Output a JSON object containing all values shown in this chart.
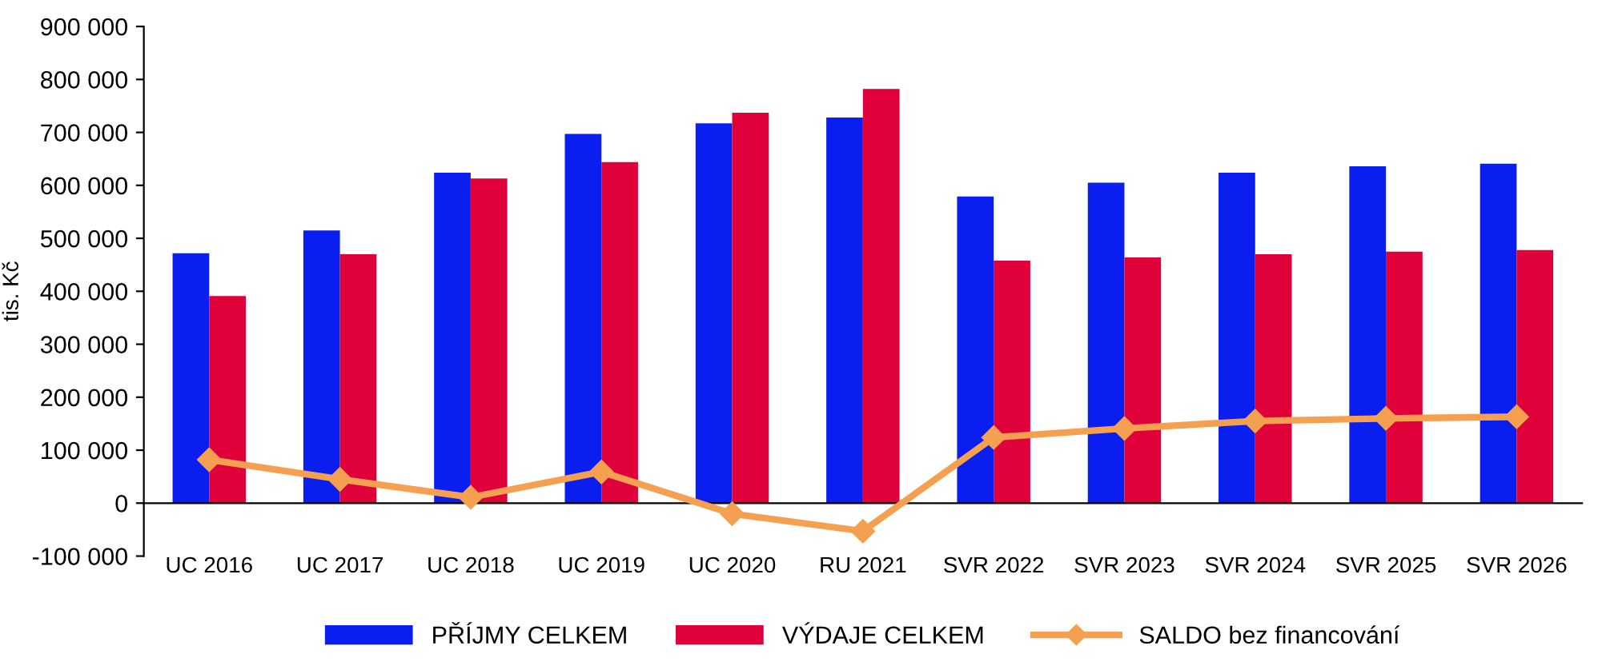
{
  "chart_data": {
    "type": "bar",
    "ylabel": "tis. Kč",
    "categories": [
      "UC 2016",
      "UC 2017",
      "UC 2018",
      "UC 2019",
      "UC 2020",
      "RU 2021",
      "SVR 2022",
      "SVR 2023",
      "SVR 2024",
      "SVR 2025",
      "SVR 2026"
    ],
    "series": [
      {
        "name": "PŘÍJMY CELKEM",
        "color": "#0a1ef0",
        "values": [
          472000,
          515000,
          624000,
          697000,
          717000,
          728000,
          579000,
          605000,
          624000,
          636000,
          641000
        ]
      },
      {
        "name": "VÝDAJE CELKEM",
        "color": "#e0003a",
        "values": [
          391000,
          470000,
          613000,
          644000,
          737000,
          782000,
          458000,
          464000,
          470000,
          475000,
          478000
        ]
      },
      {
        "name": "SALDO bez financování",
        "type": "line",
        "color": "#f5a050",
        "marker": "diamond",
        "values": [
          82000,
          45000,
          11000,
          59000,
          -20000,
          -53000,
          124000,
          141000,
          155000,
          160000,
          163000
        ]
      }
    ],
    "ylim": [
      -100000,
      900000
    ],
    "yticks": [
      {
        "value": -100000,
        "label": "-100 000"
      },
      0,
      {
        "value": 100000,
        "label": "100 000"
      },
      {
        "value": 200000,
        "label": "200 000"
      },
      {
        "value": 300000,
        "label": "300 000"
      },
      {
        "value": 400000,
        "label": "400 000"
      },
      {
        "value": 500000,
        "label": "500 000"
      },
      {
        "value": 600000,
        "label": "600 000"
      },
      {
        "value": 700000,
        "label": "700 000"
      },
      {
        "value": 800000,
        "label": "800 000"
      },
      {
        "value": 900000,
        "label": "900 000"
      }
    ],
    "grid": false,
    "legend": "bottom"
  }
}
